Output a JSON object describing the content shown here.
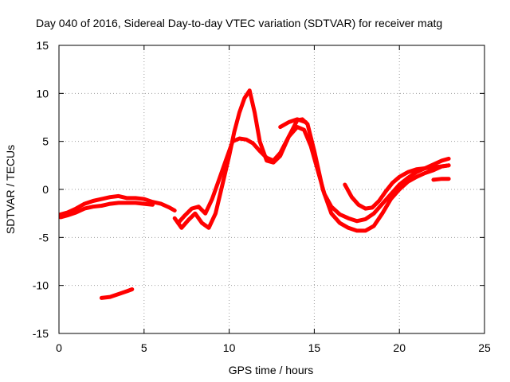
{
  "chart_data": {
    "type": "line",
    "title": "Day 040 of 2016, Sidereal Day-to-day VTEC variation (SDTVAR) for receiver matg",
    "xlabel": "GPS time / hours",
    "ylabel": "SDTVAR / TECUs",
    "xlim": [
      0,
      25
    ],
    "ylim": [
      -15,
      15
    ],
    "xticks": [
      0,
      5,
      10,
      15,
      20,
      25
    ],
    "yticks": [
      -15,
      -10,
      -5,
      0,
      5,
      10,
      15
    ],
    "xtick_labels": [
      "0",
      "5",
      "10",
      "15",
      "20",
      "25"
    ],
    "ytick_labels": [
      "-15",
      "-10",
      "-5",
      "0",
      "5",
      "10",
      "15"
    ],
    "grid": true,
    "color": "#ff0000",
    "series": [
      {
        "name": "track-1",
        "x": [
          0.1,
          0.5,
          1.0,
          1.5,
          2.0,
          2.5,
          3.0,
          3.5,
          4.0,
          4.5,
          5.0,
          5.5,
          6.0,
          6.5,
          6.8
        ],
        "y": [
          -2.6,
          -2.4,
          -2.0,
          -1.5,
          -1.2,
          -1.0,
          -0.8,
          -0.7,
          -0.9,
          -0.9,
          -1.0,
          -1.3,
          -1.5,
          -1.9,
          -2.2
        ]
      },
      {
        "name": "track-2",
        "x": [
          0.1,
          0.5,
          1.0,
          1.5,
          2.0,
          2.5,
          3.0,
          3.5,
          4.0,
          4.5,
          5.0,
          5.5
        ],
        "y": [
          -2.9,
          -2.7,
          -2.4,
          -2.0,
          -1.8,
          -1.7,
          -1.5,
          -1.4,
          -1.4,
          -1.4,
          -1.5,
          -1.6
        ]
      },
      {
        "name": "track-3",
        "x": [
          2.5,
          3.0,
          3.5,
          4.0,
          4.3
        ],
        "y": [
          -11.3,
          -11.2,
          -10.9,
          -10.6,
          -10.4
        ]
      },
      {
        "name": "track-4",
        "x": [
          6.8,
          7.2,
          7.6,
          8.0,
          8.4,
          8.8,
          9.2,
          9.6,
          10.0,
          10.3,
          10.6,
          10.9,
          11.2,
          11.5,
          11.8,
          12.2,
          12.6,
          13.0,
          13.5,
          14.0,
          14.3,
          14.6,
          15.0,
          15.5,
          16.0,
          16.5,
          17.0,
          17.5,
          18.0,
          18.5,
          19.0,
          19.5,
          20.0,
          20.5,
          21.0,
          21.5,
          22.0,
          22.5,
          22.9
        ],
        "y": [
          -3.0,
          -4.0,
          -3.2,
          -2.5,
          -3.5,
          -4.0,
          -2.5,
          0.5,
          3.5,
          6.0,
          8.0,
          9.5,
          10.3,
          8.0,
          5.0,
          3.0,
          2.8,
          3.5,
          5.5,
          7.2,
          7.3,
          6.8,
          4.0,
          0.0,
          -2.5,
          -3.5,
          -4.0,
          -4.3,
          -4.3,
          -3.8,
          -2.5,
          -1.0,
          0.0,
          0.8,
          1.3,
          1.7,
          2.0,
          2.4,
          2.5
        ]
      },
      {
        "name": "track-5",
        "x": [
          7.0,
          7.4,
          7.8,
          8.2,
          8.6,
          9.0,
          9.4,
          9.8,
          10.2,
          10.6,
          11.0,
          11.4,
          11.8,
          12.2,
          12.6,
          13.0,
          13.5,
          14.0,
          14.4,
          14.8,
          15.2,
          15.6,
          16.0,
          16.5,
          17.0,
          17.5,
          18.0,
          18.5,
          19.0,
          19.5,
          20.0,
          20.5,
          21.0,
          21.5,
          22.0,
          22.5,
          22.9
        ],
        "y": [
          -3.5,
          -2.7,
          -2.0,
          -1.8,
          -2.5,
          -1.0,
          1.0,
          3.0,
          5.0,
          5.3,
          5.2,
          4.8,
          4.0,
          3.3,
          3.0,
          3.8,
          5.5,
          6.5,
          6.2,
          4.5,
          2.0,
          -0.5,
          -1.8,
          -2.6,
          -3.0,
          -3.3,
          -3.1,
          -2.5,
          -1.5,
          -0.5,
          0.5,
          1.2,
          1.8,
          2.2,
          2.6,
          3.0,
          3.2
        ]
      },
      {
        "name": "track-6",
        "x": [
          16.8,
          17.2,
          17.6,
          18.0,
          18.4,
          18.8,
          19.2,
          19.6,
          20.0,
          20.5,
          21.0,
          21.5,
          22.0,
          22.5,
          22.9
        ],
        "y": [
          0.5,
          -0.8,
          -1.6,
          -2.0,
          -1.9,
          -1.2,
          -0.2,
          0.7,
          1.3,
          1.8,
          2.1,
          2.2,
          2.3,
          2.4,
          2.5
        ]
      },
      {
        "name": "track-7",
        "x": [
          13.0,
          13.5,
          14.0,
          14.5
        ],
        "y": [
          6.5,
          7.0,
          7.3,
          7.0
        ]
      },
      {
        "name": "track-8",
        "x": [
          22.0,
          22.5,
          22.9
        ],
        "y": [
          1.0,
          1.1,
          1.1
        ]
      }
    ]
  }
}
